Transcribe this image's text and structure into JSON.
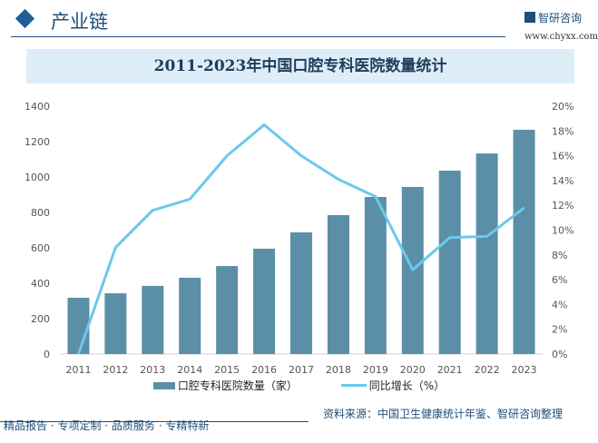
{
  "header": {
    "section": "产业链",
    "brand": "智研咨询",
    "site": "www.chyxx.com"
  },
  "chart_data": {
    "type": "bar+line",
    "title": "2011-2023年中国口腔专科医院数量统计",
    "categories": [
      "2011",
      "2012",
      "2013",
      "2014",
      "2015",
      "2016",
      "2017",
      "2018",
      "2019",
      "2020",
      "2021",
      "2022",
      "2023"
    ],
    "series": [
      {
        "name": "口腔专科医院数量（家）",
        "type": "bar",
        "axis": "left",
        "color": "#5b8fa8",
        "values": [
          318,
          343,
          385,
          431,
          497,
          595,
          687,
          785,
          887,
          944,
          1036,
          1133,
          1267
        ]
      },
      {
        "name": "同比增长（%）",
        "type": "line",
        "axis": "right",
        "color": "#6cc8ec",
        "values": [
          0,
          8.6,
          11.6,
          12.5,
          16.0,
          18.5,
          16.0,
          14.1,
          12.7,
          6.8,
          9.4,
          9.5,
          11.8
        ]
      }
    ],
    "left_axis": {
      "ylim": [
        0,
        1400
      ],
      "ticks": [
        "0",
        "200",
        "400",
        "600",
        "800",
        "1000",
        "1200",
        "1400"
      ]
    },
    "right_axis": {
      "ylim": [
        0,
        20
      ],
      "ticks": [
        "0%",
        "2%",
        "4%",
        "6%",
        "8%",
        "10%",
        "12%",
        "14%",
        "16%",
        "18%",
        "20%"
      ]
    },
    "grid": false,
    "legend": "bottom"
  },
  "footer": {
    "tagline": "精品报告 · 专项定制 · 品质服务 · 专精特新",
    "source": "资料来源：中国卫生健康统计年鉴、智研咨询整理"
  }
}
